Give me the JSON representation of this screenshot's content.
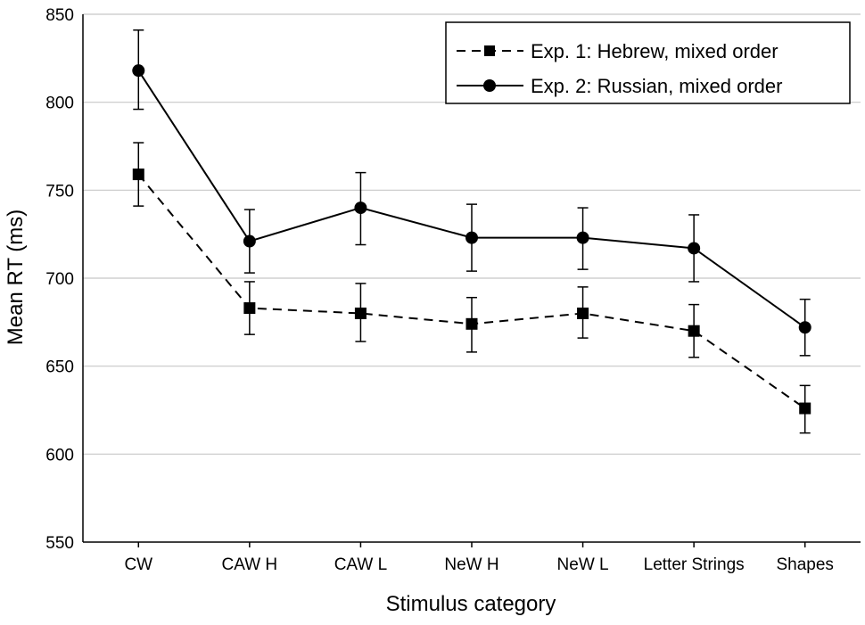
{
  "chart_data": {
    "type": "line",
    "title": "",
    "xlabel": "Stimulus category",
    "ylabel": "Mean RT (ms)",
    "ylim": [
      550,
      850
    ],
    "yticks": [
      550,
      600,
      650,
      700,
      750,
      800,
      850
    ],
    "grid": true,
    "legend_position": "top-right",
    "categories": [
      "CW",
      "CAW H",
      "CAW L",
      "NeW H",
      "NeW L",
      "Letter Strings",
      "Shapes"
    ],
    "series": [
      {
        "name": "Exp. 1: Hebrew, mixed order",
        "marker": "square",
        "line_style": "dashed",
        "values": [
          759,
          683,
          680,
          674,
          680,
          670,
          626
        ],
        "error_low": [
          741,
          668,
          664,
          658,
          666,
          655,
          612
        ],
        "error_high": [
          777,
          698,
          697,
          689,
          695,
          685,
          639
        ]
      },
      {
        "name": "Exp. 2: Russian, mixed order",
        "marker": "circle",
        "line_style": "solid",
        "values": [
          818,
          721,
          740,
          723,
          723,
          717,
          672
        ],
        "error_low": [
          796,
          703,
          719,
          704,
          705,
          698,
          656
        ],
        "error_high": [
          841,
          739,
          760,
          742,
          740,
          736,
          688
        ]
      }
    ]
  },
  "colors": {
    "line": "#000000",
    "grid": "#c8c8c8",
    "background": "#ffffff"
  }
}
